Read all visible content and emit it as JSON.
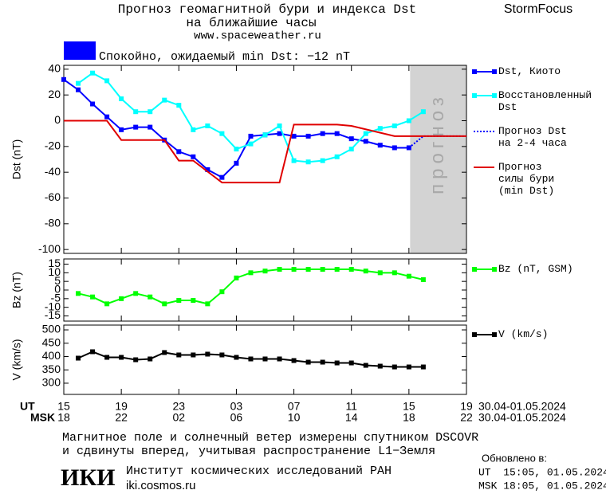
{
  "header": {
    "title": "Прогноз геомагнитной бури и индекса Dst",
    "subtitle": "на ближайшие часы",
    "url": "www.spaceweather.ru",
    "brand": "StormFocus",
    "status": "Спокойно, ожидаемый min Dst: −12 nT",
    "status_color": "#0000ff"
  },
  "time_axis": {
    "xlim": [
      "2024-04-30T15:00",
      "2024-05-01T19:00"
    ],
    "ut_title": "UT",
    "msk_title": "MSK",
    "date_range": "30.04-01.05.2024",
    "xticks": [
      {
        "value": "2024-04-30T15:00",
        "label": "15"
      },
      {
        "value": "2024-04-30T19:00",
        "label": "19"
      },
      {
        "value": "2024-04-30T23:00",
        "label": "23"
      },
      {
        "value": "2024-05-01T03:00",
        "label": "03"
      },
      {
        "value": "2024-05-01T07:00",
        "label": "07"
      },
      {
        "value": "2024-05-01T11:00",
        "label": "11"
      },
      {
        "value": "2024-05-01T15:00",
        "label": "15"
      },
      {
        "value": "2024-05-01T19:00",
        "label": "19"
      }
    ],
    "msk_ticks": [
      {
        "value": "2024-04-30T15:00",
        "label": "18"
      },
      {
        "value": "2024-04-30T19:00",
        "label": "22"
      },
      {
        "value": "2024-04-30T23:00",
        "label": "02"
      },
      {
        "value": "2024-05-01T03:00",
        "label": "06"
      },
      {
        "value": "2024-05-01T07:00",
        "label": "10"
      },
      {
        "value": "2024-05-01T11:00",
        "label": "14"
      },
      {
        "value": "2024-05-01T15:00",
        "label": "18"
      },
      {
        "value": "2024-05-01T19:00",
        "label": "22"
      }
    ]
  },
  "chart_data": [
    {
      "type": "line",
      "y_label": "Dst (nT)",
      "ylim": [
        -103,
        43
      ],
      "yticks": [
        40,
        20,
        0,
        -20,
        -40,
        -60,
        -80,
        -100
      ],
      "forecast_zone": {
        "start": "2024-05-01T15:05",
        "label": "прогноз",
        "color": "#d3d3d3"
      },
      "series": [
        {
          "name": "Dst, Киото",
          "color": "#0000ff",
          "marker": "square",
          "dotted": false,
          "x": [
            "2024-04-30T15:00",
            "2024-04-30T16:00",
            "2024-04-30T17:00",
            "2024-04-30T18:00",
            "2024-04-30T19:00",
            "2024-04-30T20:00",
            "2024-04-30T21:00",
            "2024-04-30T22:00",
            "2024-04-30T23:00",
            "2024-05-01T00:00",
            "2024-05-01T01:00",
            "2024-05-01T02:00",
            "2024-05-01T03:00",
            "2024-05-01T04:00",
            "2024-05-01T05:00",
            "2024-05-01T06:00",
            "2024-05-01T07:00",
            "2024-05-01T08:00",
            "2024-05-01T09:00",
            "2024-05-01T10:00",
            "2024-05-01T11:00",
            "2024-05-01T12:00",
            "2024-05-01T13:00",
            "2024-05-01T14:00",
            "2024-05-01T15:00"
          ],
          "values": [
            32,
            24,
            13,
            3,
            -7,
            -5,
            -5,
            -15,
            -24,
            -28,
            -38,
            -44,
            -33,
            -12,
            -11,
            -10,
            -12,
            -12,
            -10,
            -10,
            -14,
            -16,
            -19,
            -21,
            -21
          ]
        },
        {
          "name": "Восстановленный\nDst",
          "color": "#00ffff",
          "marker": "square",
          "dotted": false,
          "x": [
            "2024-04-30T16:00",
            "2024-04-30T17:00",
            "2024-04-30T18:00",
            "2024-04-30T19:00",
            "2024-04-30T20:00",
            "2024-04-30T21:00",
            "2024-04-30T22:00",
            "2024-04-30T23:00",
            "2024-05-01T00:00",
            "2024-05-01T01:00",
            "2024-05-01T02:00",
            "2024-05-01T03:00",
            "2024-05-01T04:00",
            "2024-05-01T05:00",
            "2024-05-01T06:00",
            "2024-05-01T07:00",
            "2024-05-01T08:00",
            "2024-05-01T09:00",
            "2024-05-01T10:00",
            "2024-05-01T11:00",
            "2024-05-01T12:00",
            "2024-05-01T13:00",
            "2024-05-01T14:00",
            "2024-05-01T15:00",
            "2024-05-01T16:00"
          ],
          "values": [
            29,
            37,
            31,
            17,
            7,
            7,
            16,
            12,
            -7,
            -4,
            -10,
            -22,
            -18,
            -11,
            -4,
            -31,
            -32,
            -31,
            -28,
            -22,
            -10,
            -6,
            -4,
            0,
            7
          ]
        },
        {
          "name": "Прогноз Dst\nна 2-4 часа",
          "color": "#0000ff",
          "marker": "none",
          "dotted": true,
          "x": [
            "2024-05-01T15:00",
            "2024-05-01T16:00",
            "2024-05-01T19:00"
          ],
          "values": [
            -21,
            -12,
            -12
          ]
        },
        {
          "name": "Прогноз\nсилы бури\n(min Dst)",
          "color": "#e00000",
          "marker": "none",
          "dotted": false,
          "x": [
            "2024-04-30T15:00",
            "2024-04-30T18:00",
            "2024-04-30T19:00",
            "2024-04-30T22:00",
            "2024-04-30T23:00",
            "2024-05-01T00:00",
            "2024-05-01T02:00",
            "2024-05-01T06:00",
            "2024-05-01T07:00",
            "2024-05-01T10:00",
            "2024-05-01T11:00",
            "2024-05-01T14:00",
            "2024-05-01T19:00"
          ],
          "values": [
            0,
            0,
            -15,
            -15,
            -31,
            -31,
            -48,
            -48,
            -3,
            -3,
            -4,
            -12,
            -12
          ]
        }
      ]
    },
    {
      "type": "line",
      "y_label": "Bz (nT)",
      "ylim": [
        -18,
        18
      ],
      "yticks": [
        15,
        10,
        5,
        0,
        -5,
        -10,
        -15
      ],
      "series": [
        {
          "name": "Bz (nT, GSM)",
          "color": "#00ff00",
          "marker": "square",
          "dotted": false,
          "x": [
            "2024-04-30T16:00",
            "2024-04-30T17:00",
            "2024-04-30T18:00",
            "2024-04-30T19:00",
            "2024-04-30T20:00",
            "2024-04-30T21:00",
            "2024-04-30T22:00",
            "2024-04-30T23:00",
            "2024-05-01T00:00",
            "2024-05-01T01:00",
            "2024-05-01T02:00",
            "2024-05-01T03:00",
            "2024-05-01T04:00",
            "2024-05-01T05:00",
            "2024-05-01T06:00",
            "2024-05-01T07:00",
            "2024-05-01T08:00",
            "2024-05-01T09:00",
            "2024-05-01T10:00",
            "2024-05-01T11:00",
            "2024-05-01T12:00",
            "2024-05-01T13:00",
            "2024-05-01T14:00",
            "2024-05-01T15:00",
            "2024-05-01T16:00"
          ],
          "values": [
            -2,
            -4,
            -8,
            -5,
            -2,
            -4,
            -8,
            -6,
            -6,
            -8,
            -1,
            7,
            10,
            11,
            12,
            12,
            12,
            12,
            12,
            12,
            11,
            10,
            10,
            8,
            6
          ]
        }
      ]
    },
    {
      "type": "line",
      "y_label": "V (km/s)",
      "ylim": [
        258,
        518
      ],
      "yticks": [
        500,
        450,
        400,
        350,
        300
      ],
      "series": [
        {
          "name": "V (km/s)",
          "color": "#000000",
          "marker": "square",
          "dotted": false,
          "x": [
            "2024-04-30T16:00",
            "2024-04-30T17:00",
            "2024-04-30T18:00",
            "2024-04-30T19:00",
            "2024-04-30T20:00",
            "2024-04-30T21:00",
            "2024-04-30T22:00",
            "2024-04-30T23:00",
            "2024-05-01T00:00",
            "2024-05-01T01:00",
            "2024-05-01T02:00",
            "2024-05-01T03:00",
            "2024-05-01T04:00",
            "2024-05-01T05:00",
            "2024-05-01T06:00",
            "2024-05-01T07:00",
            "2024-05-01T08:00",
            "2024-05-01T09:00",
            "2024-05-01T10:00",
            "2024-05-01T11:00",
            "2024-05-01T12:00",
            "2024-05-01T13:00",
            "2024-05-01T14:00",
            "2024-05-01T15:00",
            "2024-05-01T16:00"
          ],
          "values": [
            394,
            418,
            397,
            397,
            388,
            391,
            415,
            406,
            406,
            409,
            406,
            397,
            391,
            391,
            391,
            385,
            379,
            379,
            376,
            376,
            367,
            364,
            361,
            361,
            361
          ]
        }
      ]
    }
  ],
  "footer": {
    "note_lines": [
      "Магнитное поле и солнечный ветер измерены спутником DSCOVR",
      "и сдвинуты вперед, учитывая распространение L1−Земля"
    ],
    "logo": "ИКИ",
    "institute": "Институт космических исследований РАН",
    "site": "iki.cosmos.ru",
    "updated_title": "Обновлено в:",
    "updated_ut": "UT  15:05, 01.05.2024",
    "updated_msk": "MSK 18:05, 01.05.2024"
  }
}
